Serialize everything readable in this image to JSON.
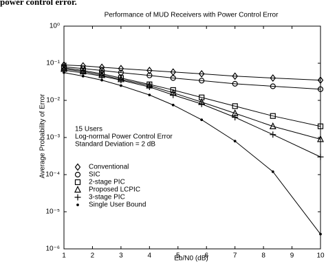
{
  "header_fragment": "power control error.",
  "chart_data": {
    "type": "line",
    "title": "Performance of MUD Receivers with Power Control Error",
    "x_label": "Eb/N0 (dB)",
    "y_label": "Average Probability of Error",
    "annotation": [
      "15 Users",
      "Log-normal Power Control Error",
      "Standard Deviation = 2 dB"
    ],
    "x": [
      1,
      1.67,
      2.33,
      3,
      4,
      4.83,
      5.83,
      7,
      8.33,
      10
    ],
    "series": [
      {
        "name": "Conventional",
        "color": "#000000",
        "marker": "diamond",
        "values": [
          0.09,
          0.085,
          0.078,
          0.072,
          0.064,
          0.058,
          0.052,
          0.045,
          0.04,
          0.035
        ]
      },
      {
        "name": "SIC",
        "color": "#000000",
        "marker": "circle",
        "values": [
          0.08,
          0.072,
          0.064,
          0.056,
          0.047,
          0.04,
          0.034,
          0.028,
          0.024,
          0.02
        ]
      },
      {
        "name": "2-stage PIC",
        "color": "#000000",
        "marker": "square",
        "values": [
          0.075,
          0.064,
          0.052,
          0.04,
          0.027,
          0.019,
          0.012,
          0.007,
          0.0038,
          0.002
        ]
      },
      {
        "name": "Proposed LCPIC",
        "color": "#000000",
        "marker": "triangle",
        "values": [
          0.07,
          0.06,
          0.048,
          0.037,
          0.025,
          0.016,
          0.009,
          0.0045,
          0.002,
          0.0009
        ]
      },
      {
        "name": "3-stage PIC",
        "color": "#000000",
        "marker": "plus",
        "values": [
          0.065,
          0.055,
          0.045,
          0.035,
          0.023,
          0.014,
          0.008,
          0.0035,
          0.0012,
          0.0003
        ]
      },
      {
        "name": "Single User Bound",
        "color": "#000000",
        "marker": "dot",
        "values": [
          0.056,
          0.045,
          0.035,
          0.025,
          0.014,
          0.0075,
          0.003,
          0.0008,
          0.00012,
          2.5e-06
        ]
      }
    ],
    "xlim": [
      1,
      10
    ],
    "xticks": [
      1,
      2,
      3,
      4,
      5,
      6,
      7,
      8,
      9,
      10
    ],
    "ylim": [
      1e-06,
      1
    ],
    "log_y": true,
    "yticks": [
      {
        "value": 1,
        "label": "10⁰"
      },
      {
        "value": 0.1,
        "label": "10⁻¹"
      },
      {
        "value": 0.01,
        "label": "10⁻²"
      },
      {
        "value": 0.001,
        "label": "10⁻³"
      },
      {
        "value": 0.0001,
        "label": "10⁻⁴"
      },
      {
        "value": 1e-05,
        "label": "10⁻⁵"
      },
      {
        "value": 1e-06,
        "label": "10⁻⁶"
      }
    ],
    "grid": false,
    "legend": "lower-left"
  }
}
